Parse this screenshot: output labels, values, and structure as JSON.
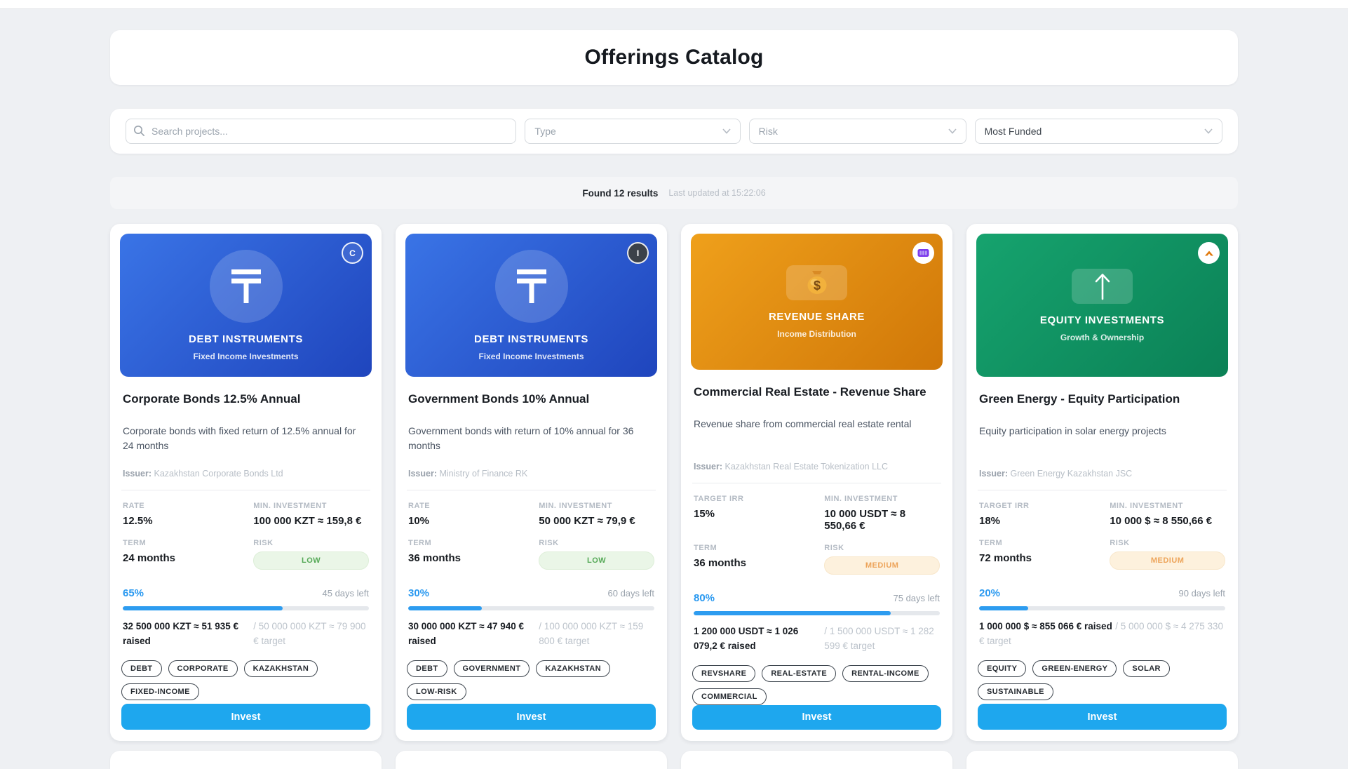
{
  "page": {
    "title": "Offerings Catalog"
  },
  "filters": {
    "search": {
      "placeholder": "Search projects...",
      "value": "",
      "icon": "search-icon"
    },
    "type": {
      "placeholder": "Type",
      "icon": "chevron-down-icon"
    },
    "risk": {
      "placeholder": "Risk",
      "icon": "chevron-down-icon"
    },
    "sort": {
      "value": "Most Funded",
      "icon": "chevron-down-icon"
    }
  },
  "results": {
    "found": "Found 12 results",
    "updated": "Last updated at 15:22:06"
  },
  "labels": {
    "invest": "Invest"
  },
  "colors": {
    "invest_button": "#1ea7ee",
    "progress_fill": "#2d9cf0",
    "percent_text": "#2a99f0",
    "risk_low_bg": "#eaf6e7",
    "risk_low_text": "#55a957",
    "risk_medium_bg": "#fdf1dd",
    "risk_medium_text": "#eda45a",
    "banner_blue": [
      "#3a74e6",
      "#1f45bd"
    ],
    "banner_orange": [
      "#efa01b",
      "#d07708"
    ],
    "banner_green": [
      "#16a36e",
      "#0b8156"
    ]
  },
  "cards": [
    {
      "banner": {
        "type_label": "DEBT INSTRUMENTS",
        "subtitle": "Fixed Income Investments",
        "icon": "tenge-icon",
        "gradient": [
          "#3a74e6",
          "#1f45bd"
        ],
        "badge": {
          "kind": "letter-outline",
          "text": "C"
        }
      },
      "title": "Corporate Bonds 12.5% Annual",
      "description": "Corporate bonds with fixed return of 12.5% annual for 24 months",
      "issuer_label": "Issuer:",
      "issuer": "Kazakhstan Corporate Bonds Ltd",
      "stats": [
        {
          "label": "RATE",
          "value": "12.5%"
        },
        {
          "label": "MIN. INVESTMENT",
          "value": "100 000 KZT ≈ 159,8 €"
        },
        {
          "label": "TERM",
          "value": "24 months"
        },
        {
          "label": "RISK",
          "value": "LOW",
          "level": "low"
        }
      ],
      "progress": {
        "percent": "65%",
        "percent_value": 65,
        "days_left": "45 days left",
        "raised": "32 500 000 KZT ≈ 51 935 € raised",
        "target": "/ 50 000 000 KZT ≈ 79 900 € target"
      },
      "funding_inline": false,
      "tags": [
        "DEBT",
        "CORPORATE",
        "KAZAKHSTAN",
        "FIXED-INCOME"
      ]
    },
    {
      "banner": {
        "type_label": "DEBT INSTRUMENTS",
        "subtitle": "Fixed Income Investments",
        "icon": "tenge-icon",
        "gradient": [
          "#3a74e6",
          "#1f45bd"
        ],
        "badge": {
          "kind": "letter-dark",
          "text": "I"
        }
      },
      "title": "Government Bonds 10% Annual",
      "description": "Government bonds with return of 10% annual for 36 months",
      "issuer_label": "Issuer:",
      "issuer": "Ministry of Finance RK",
      "stats": [
        {
          "label": "RATE",
          "value": "10%"
        },
        {
          "label": "MIN. INVESTMENT",
          "value": "50 000 KZT ≈ 79,9 €"
        },
        {
          "label": "TERM",
          "value": "36 months"
        },
        {
          "label": "RISK",
          "value": "LOW",
          "level": "low"
        }
      ],
      "progress": {
        "percent": "30%",
        "percent_value": 30,
        "days_left": "60 days left",
        "raised": "30 000 000 KZT ≈ 47 940 € raised",
        "target": "/ 100 000 000 KZT ≈ 159 800 € target"
      },
      "funding_inline": false,
      "tags": [
        "DEBT",
        "GOVERNMENT",
        "KAZAKHSTAN",
        "LOW-RISK"
      ]
    },
    {
      "banner": {
        "type_label": "REVENUE SHARE",
        "subtitle": "Income Distribution",
        "icon": "money-bag-icon",
        "gradient": [
          "#efa01b",
          "#d07708"
        ],
        "badge": {
          "kind": "logo-bars",
          "text": "",
          "icon": "building-bars-icon"
        }
      },
      "title": "Commercial Real Estate - Revenue Share",
      "description": "Revenue share from commercial real estate rental",
      "issuer_label": "Issuer:",
      "issuer": "Kazakhstan Real Estate Tokenization LLC",
      "stats": [
        {
          "label": "TARGET IRR",
          "value": "15%"
        },
        {
          "label": "MIN. INVESTMENT",
          "value": "10 000 USDT ≈ 8 550,66 €"
        },
        {
          "label": "TERM",
          "value": "36 months"
        },
        {
          "label": "RISK",
          "value": "MEDIUM",
          "level": "medium"
        }
      ],
      "progress": {
        "percent": "80%",
        "percent_value": 80,
        "days_left": "75 days left",
        "raised": "1 200 000 USDT ≈ 1 026 079,2 € raised",
        "target": "/ 1 500 000 USDT ≈ 1 282 599 € target"
      },
      "funding_inline": false,
      "tags": [
        "REVSHARE",
        "REAL-ESTATE",
        "RENTAL-INCOME",
        "COMMERCIAL"
      ]
    },
    {
      "banner": {
        "type_label": "EQUITY INVESTMENTS",
        "subtitle": "Growth & Ownership",
        "icon": "arrow-up-icon",
        "gradient": [
          "#16a36e",
          "#0b8156"
        ],
        "badge": {
          "kind": "logo-chevron",
          "text": "",
          "icon": "chevron-up-icon"
        }
      },
      "title": "Green Energy - Equity Participation",
      "description": "Equity participation in solar energy projects",
      "issuer_label": "Issuer:",
      "issuer": "Green Energy Kazakhstan JSC",
      "stats": [
        {
          "label": "TARGET IRR",
          "value": "18%"
        },
        {
          "label": "MIN. INVESTMENT",
          "value": "10 000 $ ≈ 8 550,66 €"
        },
        {
          "label": "TERM",
          "value": "72 months"
        },
        {
          "label": "RISK",
          "value": "MEDIUM",
          "level": "medium"
        }
      ],
      "progress": {
        "percent": "20%",
        "percent_value": 20,
        "days_left": "90 days left",
        "raised": "1 000 000 $ ≈ 855 066 € raised",
        "target": "/ 5 000 000 $ ≈ 4 275 330 € target"
      },
      "funding_inline": true,
      "tags": [
        "EQUITY",
        "GREEN-ENERGY",
        "SOLAR",
        "SUSTAINABLE"
      ]
    }
  ]
}
